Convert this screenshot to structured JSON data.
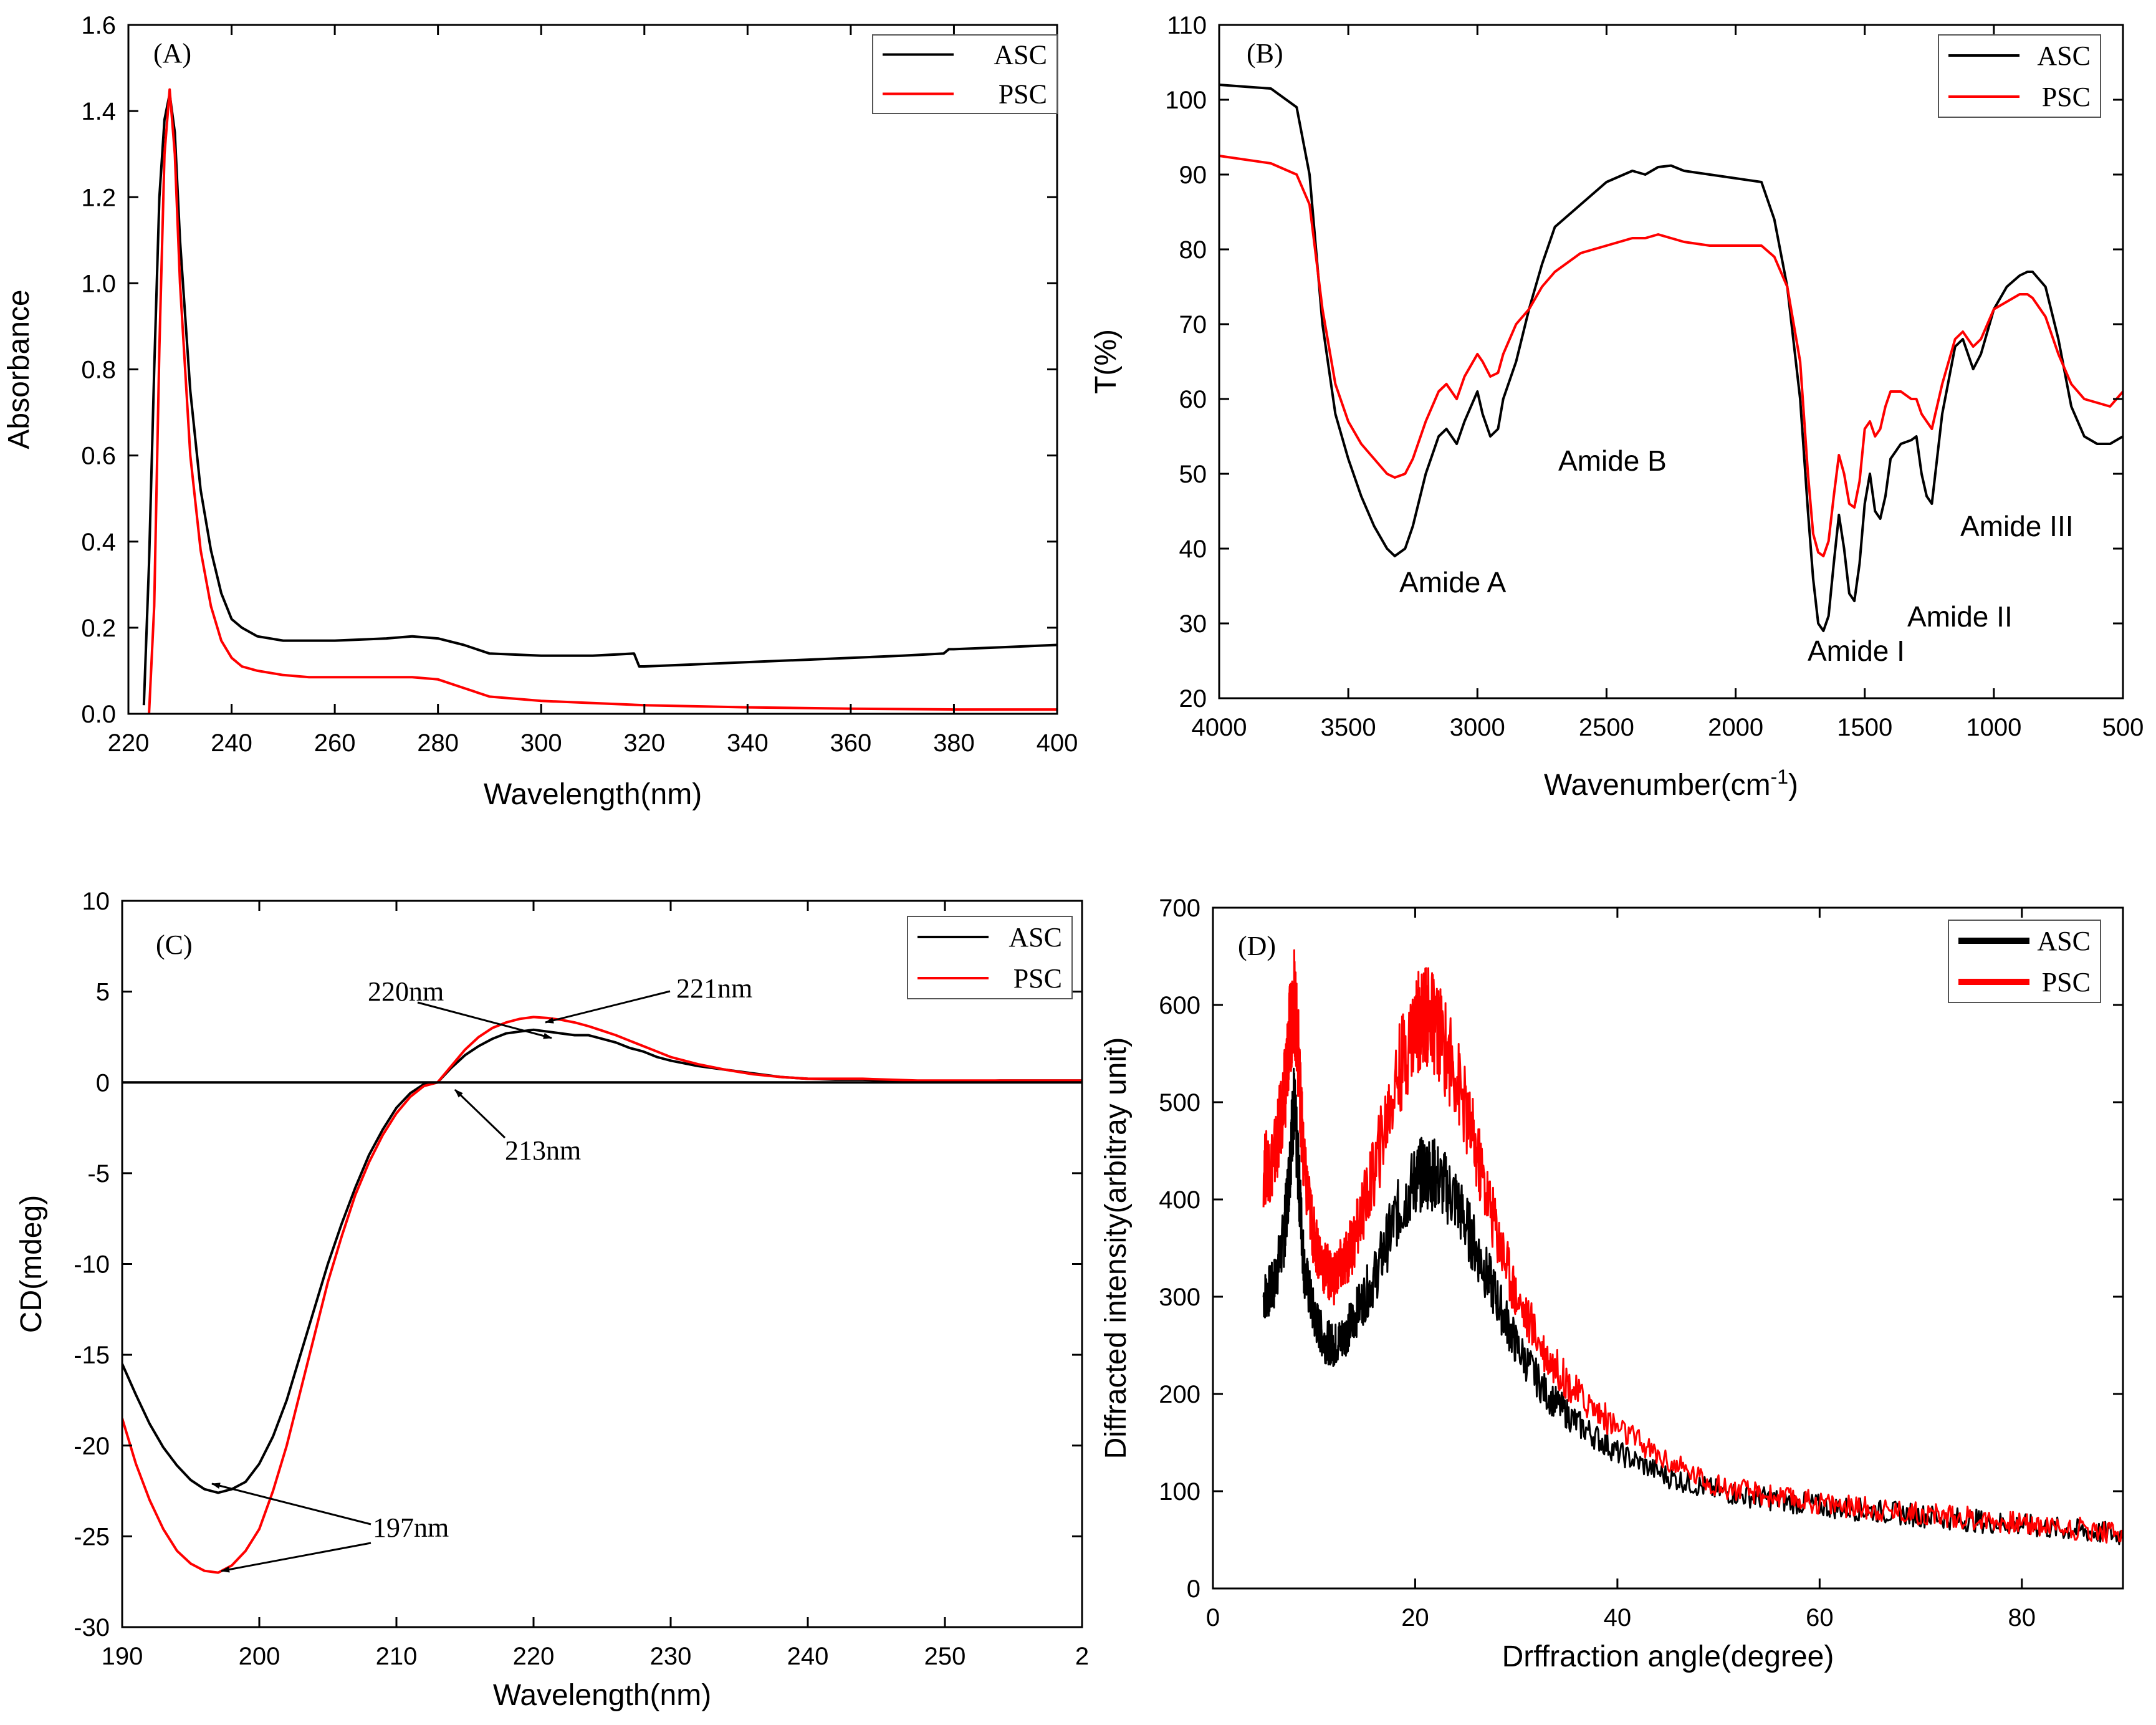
{
  "colors": {
    "asc": "#000000",
    "psc": "#ff0000",
    "axis": "#000000",
    "background": "#ffffff"
  },
  "panels": [
    {
      "id": "A",
      "panel_label": "(A)",
      "xlabel": "Wavelength(nm)",
      "ylabel": "Absorbance",
      "legend": [
        "ASC",
        "PSC"
      ],
      "annotations": [],
      "x_ticks": [
        "220",
        "240",
        "260",
        "280",
        "300",
        "320",
        "340",
        "360",
        "380",
        "400"
      ],
      "y_ticks": [
        "0.0",
        "0.2",
        "0.4",
        "0.6",
        "0.8",
        "1.0",
        "1.2",
        "1.4",
        "1.6"
      ]
    },
    {
      "id": "B",
      "panel_label": "(B)",
      "xlabel": "Wavenumber(cm",
      "xlabel_sup": "-1",
      "xlabel_end": ")",
      "ylabel": "T(%)",
      "legend": [
        "ASC",
        "PSC"
      ],
      "annotations": [
        "Amide A",
        "Amide B",
        "Amide I",
        "Amide II",
        "Amide III"
      ],
      "x_ticks": [
        "4000",
        "3500",
        "3000",
        "2500",
        "2000",
        "1500",
        "1000",
        "500"
      ],
      "y_ticks": [
        "20",
        "30",
        "40",
        "50",
        "60",
        "70",
        "80",
        "90",
        "100",
        "110"
      ]
    },
    {
      "id": "C",
      "panel_label": "(C)",
      "xlabel": "Wavelength(nm)",
      "ylabel": "CD(mdeg)",
      "legend": [
        "ASC",
        "PSC"
      ],
      "annotations": [
        "220nm",
        "221nm",
        "213nm",
        "197nm"
      ],
      "x_ticks": [
        "190",
        "200",
        "210",
        "220",
        "230",
        "240",
        "250",
        "2"
      ],
      "y_ticks": [
        "-30",
        "-25",
        "-20",
        "-15",
        "-10",
        "-5",
        "0",
        "5",
        "10"
      ]
    },
    {
      "id": "D",
      "panel_label": "(D)",
      "xlabel": "Drffraction angle(degree)",
      "ylabel": "Diffracted intensity(arbitray unit)",
      "legend": [
        "ASC",
        "PSC"
      ],
      "annotations": [],
      "x_ticks": [
        "0",
        "20",
        "40",
        "60",
        "80"
      ],
      "y_ticks": [
        "0",
        "100",
        "200",
        "300",
        "400",
        "500",
        "600",
        "700"
      ]
    }
  ],
  "chart_data": [
    {
      "type": "line",
      "panel": "(A)",
      "xlabel": "Wavelength(nm)",
      "ylabel": "Absorbance",
      "xlim": [
        220,
        400
      ],
      "ylim": [
        0.0,
        1.6
      ],
      "legend_position": "top-right",
      "series": [
        {
          "name": "ASC",
          "x": [
            223,
            224,
            225,
            226,
            227,
            228,
            229,
            230,
            232,
            234,
            236,
            238,
            240,
            242,
            245,
            250,
            255,
            260,
            270,
            275,
            280,
            285,
            290,
            300,
            310,
            318,
            319,
            320,
            330,
            340,
            350,
            360,
            370,
            378,
            379,
            380,
            390,
            400
          ],
          "y": [
            0.02,
            0.35,
            0.8,
            1.2,
            1.38,
            1.44,
            1.35,
            1.1,
            0.75,
            0.52,
            0.38,
            0.28,
            0.22,
            0.2,
            0.18,
            0.17,
            0.17,
            0.17,
            0.175,
            0.18,
            0.175,
            0.16,
            0.14,
            0.135,
            0.135,
            0.14,
            0.11,
            0.11,
            0.115,
            0.12,
            0.125,
            0.13,
            0.135,
            0.14,
            0.15,
            0.15,
            0.155,
            0.16
          ]
        },
        {
          "name": "PSC",
          "x": [
            224,
            225,
            226,
            227,
            228,
            229,
            230,
            232,
            234,
            236,
            238,
            240,
            242,
            245,
            250,
            255,
            260,
            270,
            275,
            280,
            285,
            290,
            300,
            310,
            320,
            340,
            360,
            380,
            400
          ],
          "y": [
            0.0,
            0.25,
            0.85,
            1.3,
            1.45,
            1.3,
            1.0,
            0.6,
            0.38,
            0.25,
            0.17,
            0.13,
            0.11,
            0.1,
            0.09,
            0.085,
            0.085,
            0.085,
            0.085,
            0.08,
            0.06,
            0.04,
            0.03,
            0.025,
            0.02,
            0.015,
            0.012,
            0.01,
            0.01
          ]
        }
      ]
    },
    {
      "type": "line",
      "panel": "(B)",
      "xlabel": "Wavenumber(cm-1)",
      "ylabel": "T(%)",
      "xlim": [
        4000,
        500
      ],
      "ylim": [
        20,
        110
      ],
      "x_reversed": true,
      "legend_position": "top-right",
      "series": [
        {
          "name": "ASC",
          "x": [
            4000,
            3800,
            3700,
            3650,
            3600,
            3550,
            3500,
            3450,
            3400,
            3350,
            3320,
            3280,
            3250,
            3200,
            3150,
            3120,
            3080,
            3050,
            3000,
            2980,
            2950,
            2920,
            2900,
            2850,
            2800,
            2750,
            2700,
            2600,
            2500,
            2400,
            2350,
            2300,
            2250,
            2200,
            2100,
            2000,
            1900,
            1850,
            1800,
            1750,
            1720,
            1700,
            1680,
            1660,
            1640,
            1620,
            1600,
            1580,
            1560,
            1540,
            1520,
            1500,
            1480,
            1460,
            1440,
            1420,
            1400,
            1380,
            1360,
            1320,
            1300,
            1280,
            1260,
            1240,
            1220,
            1200,
            1150,
            1120,
            1100,
            1080,
            1050,
            1000,
            950,
            900,
            870,
            850,
            800,
            750,
            700,
            650,
            600,
            550,
            500
          ],
          "y": [
            102,
            101.5,
            99,
            90,
            70,
            58,
            52,
            47,
            43,
            40,
            39,
            40,
            43,
            50,
            55,
            56,
            54,
            57,
            61,
            58,
            55,
            56,
            60,
            65,
            72,
            78,
            83,
            86,
            89,
            90.5,
            90,
            91,
            91.2,
            90.5,
            90,
            89.5,
            89,
            84,
            75,
            60,
            45,
            36,
            30,
            29,
            31,
            38,
            44.5,
            40,
            34,
            33,
            38,
            46,
            50,
            45,
            44,
            47,
            52,
            53,
            54,
            54.5,
            55,
            50,
            47,
            46,
            52,
            58,
            67,
            68,
            66,
            64,
            66,
            72,
            75,
            76.5,
            77,
            77,
            75,
            68,
            59,
            55,
            54,
            54,
            55
          ]
        },
        {
          "name": "PSC",
          "x": [
            4000,
            3800,
            3700,
            3650,
            3600,
            3550,
            3500,
            3450,
            3400,
            3350,
            3320,
            3280,
            3250,
            3200,
            3150,
            3120,
            3080,
            3050,
            3000,
            2980,
            2950,
            2920,
            2900,
            2850,
            2800,
            2750,
            2700,
            2600,
            2500,
            2400,
            2350,
            2300,
            2250,
            2200,
            2100,
            2000,
            1900,
            1850,
            1800,
            1750,
            1720,
            1700,
            1680,
            1660,
            1640,
            1620,
            1600,
            1580,
            1560,
            1540,
            1520,
            1500,
            1480,
            1460,
            1440,
            1420,
            1400,
            1380,
            1360,
            1320,
            1300,
            1280,
            1260,
            1240,
            1220,
            1200,
            1150,
            1120,
            1100,
            1080,
            1050,
            1000,
            950,
            900,
            870,
            850,
            800,
            750,
            700,
            650,
            600,
            550,
            500
          ],
          "y": [
            92.5,
            91.5,
            90,
            86,
            72,
            62,
            57,
            54,
            52,
            50,
            49.5,
            50,
            52,
            57,
            61,
            62,
            60,
            63,
            66,
            65,
            63,
            63.5,
            66,
            70,
            72,
            75,
            77,
            79.5,
            80.5,
            81.5,
            81.5,
            82,
            81.5,
            81,
            80.5,
            80.5,
            80.5,
            79,
            75,
            65,
            50,
            42,
            39.5,
            39,
            41,
            47,
            52.5,
            50,
            46,
            45.5,
            49,
            56,
            57,
            55,
            56,
            59,
            61,
            61,
            61,
            60,
            60,
            58,
            57,
            56,
            59,
            62,
            68,
            69,
            68,
            67,
            68,
            72,
            73,
            74,
            74,
            73.5,
            71,
            66,
            62,
            60,
            59.5,
            59,
            61
          ]
        }
      ]
    },
    {
      "type": "line",
      "panel": "(C)",
      "xlabel": "Wavelength(nm)",
      "ylabel": "CD(mdeg)",
      "xlim": [
        190,
        260
      ],
      "ylim": [
        -30,
        10
      ],
      "legend_position": "top-right",
      "series": [
        {
          "name": "ASC",
          "x": [
            190,
            191,
            192,
            193,
            194,
            195,
            196,
            197,
            198,
            199,
            200,
            201,
            202,
            203,
            204,
            205,
            206,
            207,
            208,
            209,
            210,
            211,
            212,
            213,
            214,
            215,
            216,
            217,
            218,
            219,
            220,
            221,
            222,
            223,
            224,
            225,
            226,
            227,
            228,
            229,
            230,
            232,
            234,
            236,
            238,
            240,
            242,
            244,
            246,
            248,
            250,
            252,
            254,
            256,
            258,
            260
          ],
          "y": [
            -15.5,
            -17.2,
            -18.8,
            -20.1,
            -21.1,
            -21.9,
            -22.4,
            -22.6,
            -22.4,
            -22,
            -21,
            -19.5,
            -17.5,
            -15,
            -12.5,
            -10,
            -7.8,
            -5.8,
            -4,
            -2.6,
            -1.4,
            -0.6,
            -0.1,
            0,
            0.8,
            1.5,
            2,
            2.4,
            2.7,
            2.8,
            2.9,
            2.8,
            2.7,
            2.6,
            2.6,
            2.4,
            2.2,
            1.9,
            1.7,
            1.4,
            1.2,
            0.9,
            0.7,
            0.5,
            0.3,
            0.2,
            0.15,
            0.15,
            0.1,
            0.05,
            0.05,
            0.05,
            0.1,
            0.1,
            0.1,
            0.1
          ]
        },
        {
          "name": "PSC",
          "x": [
            190,
            191,
            192,
            193,
            194,
            195,
            196,
            197,
            198,
            199,
            200,
            201,
            202,
            203,
            204,
            205,
            206,
            207,
            208,
            209,
            210,
            211,
            212,
            213,
            214,
            215,
            216,
            217,
            218,
            219,
            220,
            221,
            222,
            223,
            224,
            225,
            226,
            227,
            228,
            229,
            230,
            232,
            234,
            236,
            238,
            240,
            242,
            244,
            246,
            248,
            250,
            252,
            254,
            256,
            258,
            260
          ],
          "y": [
            -18.5,
            -21,
            -23,
            -24.6,
            -25.8,
            -26.5,
            -26.9,
            -27,
            -26.6,
            -25.8,
            -24.6,
            -22.5,
            -20,
            -17,
            -14,
            -11,
            -8.5,
            -6.2,
            -4.4,
            -2.9,
            -1.7,
            -0.8,
            -0.2,
            0,
            0.9,
            1.8,
            2.5,
            3,
            3.3,
            3.5,
            3.6,
            3.55,
            3.45,
            3.3,
            3.1,
            2.85,
            2.6,
            2.3,
            2,
            1.7,
            1.4,
            1,
            0.7,
            0.45,
            0.3,
            0.2,
            0.2,
            0.2,
            0.15,
            0.1,
            0.1,
            0.1,
            0.1,
            0.1,
            0.1,
            0.1
          ]
        },
        {
          "name": "",
          "x": [
            190,
            260
          ],
          "y": [
            0,
            0
          ]
        }
      ]
    },
    {
      "type": "line",
      "panel": "(D)",
      "xlabel": "Drffraction angle(degree)",
      "ylabel": "Diffracted intensity(arbitray unit)",
      "xlim": [
        0,
        90
      ],
      "ylim": [
        0,
        700
      ],
      "legend_position": "top-right",
      "series": [
        {
          "name": "ASC",
          "x": [
            5,
            6,
            7,
            7.5,
            8,
            8.5,
            9,
            10,
            11,
            12,
            13,
            14,
            16,
            18,
            20,
            21,
            22,
            24,
            26,
            28,
            30,
            33,
            36,
            40,
            45,
            50,
            55,
            60,
            65,
            70,
            75,
            80,
            85,
            90
          ],
          "y": [
            300,
            310,
            360,
            420,
            500,
            420,
            330,
            280,
            255,
            250,
            260,
            280,
            320,
            380,
            420,
            430,
            425,
            400,
            350,
            300,
            250,
            200,
            170,
            140,
            115,
            100,
            92,
            85,
            80,
            75,
            70,
            65,
            60,
            55
          ]
        },
        {
          "name": "PSC",
          "x": [
            5,
            6,
            7,
            7.5,
            8,
            8.5,
            9,
            10,
            11,
            12,
            13,
            14,
            16,
            18,
            20,
            21,
            22,
            24,
            26,
            28,
            30,
            33,
            36,
            40,
            45,
            50,
            55,
            60,
            65,
            70,
            75,
            80,
            85,
            90
          ],
          "y": [
            430,
            440,
            500,
            560,
            610,
            540,
            430,
            360,
            330,
            320,
            335,
            360,
            430,
            520,
            580,
            590,
            580,
            530,
            450,
            370,
            300,
            240,
            200,
            165,
            130,
            105,
            95,
            88,
            82,
            77,
            72,
            67,
            62,
            57
          ]
        }
      ]
    }
  ]
}
